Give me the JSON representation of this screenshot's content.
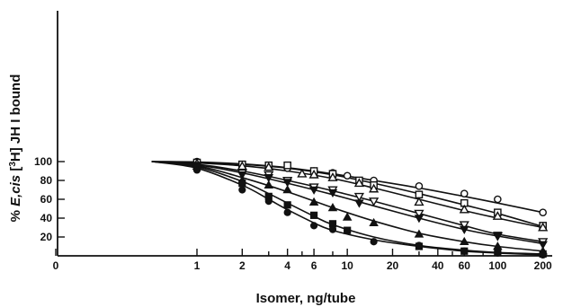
{
  "chart_data": {
    "type": "scatter",
    "xlabel": "Isomer, ng/tube",
    "ylabel_parts": [
      "% ",
      "E,cis",
      " [",
      "3",
      "H] JH I bound"
    ],
    "x_scale": "log",
    "x_ticks": [
      {
        "value": 0,
        "label": "0"
      },
      {
        "value": 1,
        "label": "1"
      },
      {
        "value": 2,
        "label": "2"
      },
      {
        "value": 4,
        "label": "4"
      },
      {
        "value": 6,
        "label": "6"
      },
      {
        "value": 10,
        "label": "10"
      },
      {
        "value": 20,
        "label": "20"
      },
      {
        "value": 40,
        "label": "40"
      },
      {
        "value": 60,
        "label": "60"
      },
      {
        "value": 100,
        "label": "100"
      },
      {
        "value": 200,
        "label": "200"
      }
    ],
    "x_minor_ticks": [
      3,
      5,
      8,
      30,
      50,
      80
    ],
    "y_ticks": [
      {
        "value": 20,
        "label": "20"
      },
      {
        "value": 40,
        "label": "40"
      },
      {
        "value": 60,
        "label": "60"
      },
      {
        "value": 80,
        "label": "80"
      },
      {
        "value": 100,
        "label": "100"
      }
    ],
    "ylim": [
      0,
      110
    ],
    "grid": false,
    "curve_start": {
      "x": 0.5,
      "y": 100
    },
    "series": [
      {
        "marker": "circle-open",
        "points": [
          [
            1,
            100
          ],
          [
            2,
            97
          ],
          [
            3,
            95
          ],
          [
            4,
            93
          ],
          [
            6,
            90
          ],
          [
            8,
            88
          ],
          [
            10,
            85
          ],
          [
            15,
            80
          ],
          [
            30,
            74
          ],
          [
            60,
            66
          ],
          [
            100,
            60
          ],
          [
            200,
            46
          ]
        ],
        "curve": [
          [
            0.5,
            100
          ],
          [
            1,
            99.6
          ],
          [
            2,
            97.5
          ],
          [
            4,
            93.5
          ],
          [
            8,
            87
          ],
          [
            15,
            80
          ],
          [
            30,
            72
          ],
          [
            60,
            63
          ],
          [
            100,
            56
          ],
          [
            200,
            46
          ]
        ]
      },
      {
        "marker": "square-open",
        "points": [
          [
            1,
            99
          ],
          [
            2,
            97
          ],
          [
            3,
            96
          ],
          [
            4,
            96
          ],
          [
            6,
            90
          ],
          [
            8,
            87
          ],
          [
            12,
            80
          ],
          [
            15,
            75
          ],
          [
            30,
            65
          ],
          [
            60,
            56
          ],
          [
            100,
            46
          ],
          [
            200,
            32
          ]
        ],
        "curve": [
          [
            0.5,
            100
          ],
          [
            1,
            99.3
          ],
          [
            2,
            97
          ],
          [
            4,
            93
          ],
          [
            8,
            86
          ],
          [
            15,
            77
          ],
          [
            30,
            66
          ],
          [
            60,
            54
          ],
          [
            100,
            45
          ],
          [
            200,
            31
          ]
        ]
      },
      {
        "marker": "triangle-up-open",
        "points": [
          [
            1,
            98
          ],
          [
            2,
            95
          ],
          [
            3,
            94
          ],
          [
            5,
            87
          ],
          [
            6,
            86
          ],
          [
            8,
            83
          ],
          [
            12,
            77
          ],
          [
            15,
            71
          ],
          [
            30,
            57
          ],
          [
            60,
            49
          ],
          [
            100,
            42
          ],
          [
            200,
            30
          ]
        ],
        "curve": [
          [
            0.5,
            100
          ],
          [
            1,
            98.5
          ],
          [
            2,
            95.5
          ],
          [
            4,
            90
          ],
          [
            8,
            82
          ],
          [
            15,
            72
          ],
          [
            30,
            60
          ],
          [
            60,
            48
          ],
          [
            100,
            40
          ],
          [
            200,
            30
          ]
        ]
      },
      {
        "marker": "triangle-down-open",
        "points": [
          [
            1,
            96
          ],
          [
            2,
            88
          ],
          [
            3,
            86
          ],
          [
            4,
            80
          ],
          [
            6,
            73
          ],
          [
            8,
            70
          ],
          [
            12,
            63
          ],
          [
            15,
            58
          ],
          [
            30,
            45
          ],
          [
            60,
            33
          ],
          [
            100,
            21
          ],
          [
            200,
            15
          ]
        ],
        "curve": [
          [
            0.5,
            100
          ],
          [
            1,
            97
          ],
          [
            2,
            90
          ],
          [
            4,
            80
          ],
          [
            8,
            69
          ],
          [
            15,
            58
          ],
          [
            30,
            45
          ],
          [
            60,
            32
          ],
          [
            100,
            23
          ],
          [
            200,
            15
          ]
        ]
      },
      {
        "marker": "triangle-down-filled",
        "points": [
          [
            1,
            95
          ],
          [
            2,
            86
          ],
          [
            3,
            83
          ],
          [
            4,
            78
          ],
          [
            6,
            70
          ],
          [
            8,
            67
          ],
          [
            12,
            56
          ],
          [
            30,
            40
          ],
          [
            60,
            28
          ],
          [
            100,
            22
          ],
          [
            200,
            12
          ]
        ],
        "curve": [
          [
            0.5,
            100
          ],
          [
            1,
            96.5
          ],
          [
            2,
            88
          ],
          [
            4,
            77
          ],
          [
            8,
            65
          ],
          [
            15,
            53
          ],
          [
            30,
            40
          ],
          [
            60,
            28
          ],
          [
            100,
            21
          ],
          [
            200,
            13
          ]
        ]
      },
      {
        "marker": "triangle-up-filled",
        "points": [
          [
            1,
            95
          ],
          [
            2,
            80
          ],
          [
            3,
            75
          ],
          [
            4,
            70
          ],
          [
            6,
            57
          ],
          [
            8,
            51
          ],
          [
            10,
            41
          ],
          [
            15,
            35
          ],
          [
            30,
            23
          ],
          [
            60,
            15
          ],
          [
            100,
            10
          ],
          [
            200,
            5
          ]
        ],
        "curve": [
          [
            0.5,
            100
          ],
          [
            1,
            95.5
          ],
          [
            2,
            83
          ],
          [
            4,
            68
          ],
          [
            8,
            51
          ],
          [
            15,
            37
          ],
          [
            30,
            24
          ],
          [
            60,
            15
          ],
          [
            100,
            10
          ],
          [
            200,
            5
          ]
        ]
      },
      {
        "marker": "square-filled",
        "points": [
          [
            1,
            94
          ],
          [
            2,
            77
          ],
          [
            3,
            63
          ],
          [
            4,
            54
          ],
          [
            6,
            43
          ],
          [
            8,
            34
          ],
          [
            10,
            27
          ],
          [
            30,
            10
          ],
          [
            60,
            5
          ],
          [
            100,
            4
          ],
          [
            200,
            2
          ]
        ],
        "curve": [
          [
            0.5,
            100
          ],
          [
            1,
            94.5
          ],
          [
            2,
            79
          ],
          [
            3,
            66
          ],
          [
            4,
            56
          ],
          [
            6,
            42
          ],
          [
            8,
            33
          ],
          [
            15,
            20
          ],
          [
            30,
            11
          ],
          [
            60,
            6
          ],
          [
            100,
            3.5
          ],
          [
            200,
            2
          ]
        ]
      },
      {
        "marker": "circle-filled",
        "points": [
          [
            1,
            91
          ],
          [
            2,
            70
          ],
          [
            3,
            58
          ],
          [
            4,
            46
          ],
          [
            6,
            32
          ],
          [
            8,
            28
          ],
          [
            15,
            15
          ],
          [
            30,
            11
          ],
          [
            60,
            5
          ],
          [
            100,
            3
          ],
          [
            200,
            1
          ]
        ],
        "curve": [
          [
            0.5,
            100
          ],
          [
            1,
            93
          ],
          [
            2,
            75
          ],
          [
            3,
            60
          ],
          [
            4,
            49
          ],
          [
            6,
            35
          ],
          [
            8,
            27
          ],
          [
            15,
            17
          ],
          [
            30,
            10
          ],
          [
            60,
            5
          ],
          [
            100,
            3
          ],
          [
            200,
            1
          ]
        ]
      }
    ]
  }
}
